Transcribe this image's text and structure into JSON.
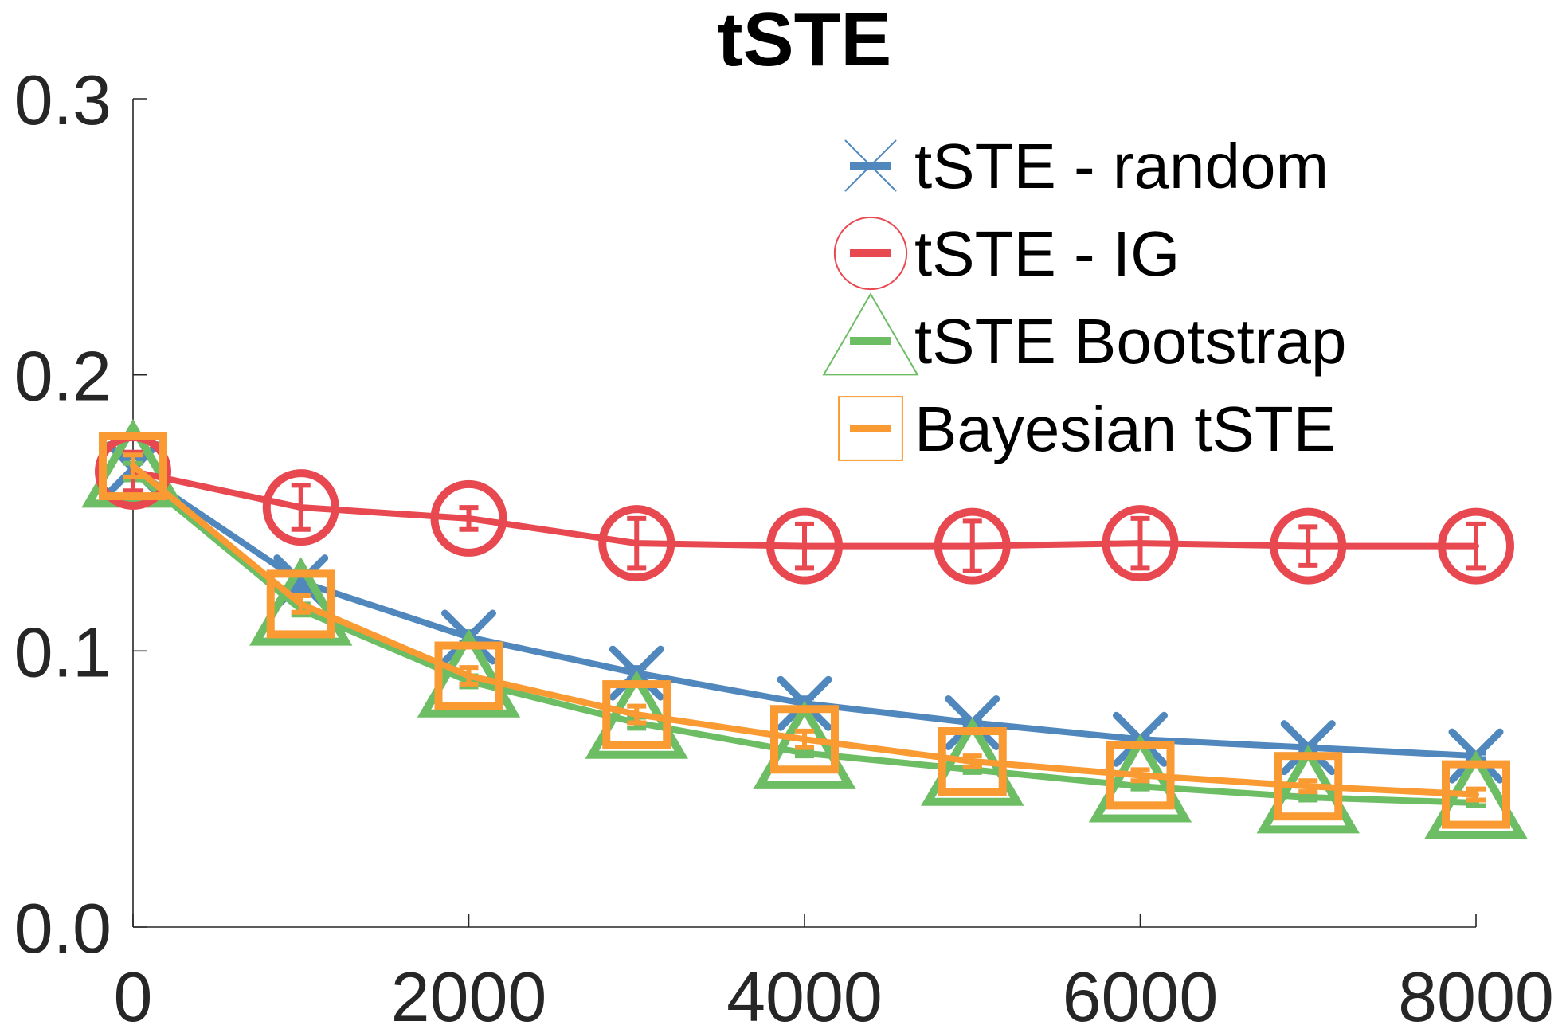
{
  "chart_data": {
    "type": "line",
    "title": "tSTE",
    "xlabel": "",
    "ylabel": "",
    "x": [
      0,
      1000,
      2000,
      3000,
      4000,
      5000,
      6000,
      7000,
      8000
    ],
    "xlim": [
      0,
      8000
    ],
    "ylim": [
      0,
      0.3
    ],
    "x_ticks": [
      0,
      2000,
      4000,
      6000,
      8000
    ],
    "x_tick_labels": [
      "0",
      "2000",
      "4000",
      "6000",
      "8000"
    ],
    "y_ticks": [
      0,
      0.1,
      0.2,
      0.3
    ],
    "y_tick_labels": [
      "0.0",
      "0.1",
      "0.2",
      "0.3"
    ],
    "grid": false,
    "legend_position": "top-right",
    "series": [
      {
        "name": "tSTE - random",
        "color": "#5088bd",
        "marker": "x",
        "values": [
          0.166,
          0.125,
          0.105,
          0.092,
          0.081,
          0.074,
          0.068,
          0.065,
          0.062
        ],
        "errors": [
          0.004,
          0.003,
          0.002,
          0.002,
          0.002,
          0.001,
          0.001,
          0.001,
          0.001
        ]
      },
      {
        "name": "tSTE - IG",
        "color": "#e8484f",
        "marker": "circle",
        "values": [
          0.165,
          0.152,
          0.148,
          0.139,
          0.138,
          0.138,
          0.139,
          0.138,
          0.138
        ],
        "errors": [
          0.007,
          0.008,
          0.004,
          0.009,
          0.008,
          0.009,
          0.009,
          0.007,
          0.008
        ]
      },
      {
        "name": "tSTE Bootstrap",
        "color": "#6cbd63",
        "marker": "triangle",
        "values": [
          0.165,
          0.115,
          0.089,
          0.074,
          0.063,
          0.057,
          0.051,
          0.047,
          0.045
        ],
        "errors": [
          0.003,
          0.002,
          0.002,
          0.002,
          0.001,
          0.001,
          0.001,
          0.001,
          0.001
        ]
      },
      {
        "name": "Bayesian tSTE",
        "color": "#f99a32",
        "marker": "square",
        "values": [
          0.167,
          0.117,
          0.091,
          0.077,
          0.068,
          0.06,
          0.055,
          0.051,
          0.048
        ],
        "errors": [
          0.004,
          0.003,
          0.003,
          0.003,
          0.003,
          0.002,
          0.002,
          0.002,
          0.002
        ]
      }
    ]
  }
}
